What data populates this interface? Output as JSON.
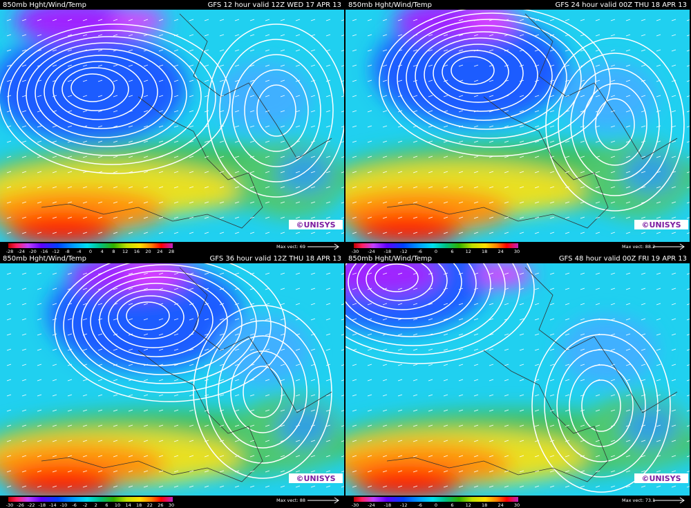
{
  "panels": [
    {
      "header_left": "850mb Hght/Wind/Temp",
      "header_right": "GFS 12 hour valid 12Z WED 17 APR 13",
      "colorbar": [
        "-28",
        "-24",
        "-20",
        "-16",
        "-12",
        "-8",
        "-4",
        "0",
        "4",
        "8",
        "12",
        "16",
        "20",
        "24",
        "28"
      ],
      "max_vect": "Max vect: 69",
      "logo": "©UNISYS"
    },
    {
      "header_left": "850mb Hght/Wind/Temp",
      "header_right": "GFS 24 hour valid 00Z THU 18 APR 13",
      "colorbar": [
        "-30",
        "-24",
        "-18",
        "-12",
        "-6",
        "0",
        "6",
        "12",
        "18",
        "24",
        "30"
      ],
      "max_vect": "Max vect: 88.2",
      "logo": "©UNISYS"
    },
    {
      "header_left": "850mb Hght/Wind/Temp",
      "header_right": "GFS 36 hour valid 12Z THU 18 APR 13",
      "colorbar": [
        "-30",
        "-26",
        "-22",
        "-18",
        "-14",
        "-10",
        "-6",
        "-2",
        "2",
        "6",
        "10",
        "14",
        "18",
        "22",
        "26",
        "30"
      ],
      "max_vect": "Max vect: 88",
      "logo": "©UNISYS"
    },
    {
      "header_left": "850mb Hght/Wind/Temp",
      "header_right": "GFS 48 hour valid 00Z FRI 19 APR 13",
      "colorbar": [
        "-30",
        "-24",
        "-18",
        "-12",
        "-6",
        "0",
        "6",
        "12",
        "18",
        "24",
        "30"
      ],
      "max_vect": "Max vect: 73.1",
      "logo": "©UNISYS"
    }
  ]
}
